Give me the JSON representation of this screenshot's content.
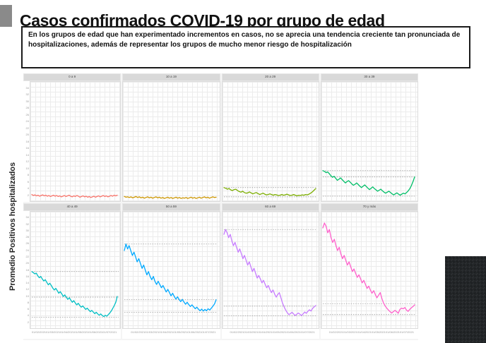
{
  "title": "Casos confirmados COVID-19 por grupo de edad",
  "note": "En los grupos de edad que han experimentado incrementos en casos, no se aprecia una tendencia creciente tan pronunciada de hospitalizaciones, además de representar los grupos de mucho menor riesgo de hospitalización",
  "ylabel": "Promedio Positivos hospitalizados",
  "colors": {
    "accent_bar": "#8a8a8a",
    "strip_background": "#d9d9d9",
    "reference_line": "#8a8a8a",
    "foam_block": "#232628"
  },
  "chart_data": {
    "type": "line",
    "layout": "facet_grid_2x4",
    "title": "",
    "xlabel": "",
    "ylabel": "Promedio Positivos hospitalizados",
    "ylim": [
      0,
      36
    ],
    "grid": true,
    "legend": "none",
    "yticks": [
      2,
      4,
      6,
      8,
      10,
      12,
      14,
      16,
      18,
      20,
      22,
      24,
      26,
      28,
      30,
      32,
      34
    ],
    "xticks": [
      "01/02/2021",
      "01/03/2021",
      "01/04/2021",
      "01/05/2021",
      "01/06/2021",
      "01/07/2021"
    ],
    "panels": [
      {
        "label": "0 a 9",
        "color": "#F8766D",
        "ref_lines": [],
        "values": [
          2.0,
          1.7,
          1.9,
          1.6,
          1.8,
          1.5,
          1.7,
          1.9,
          1.6,
          1.8,
          1.5,
          1.7,
          1.4,
          1.6,
          1.8,
          1.5,
          1.7,
          1.4,
          1.6,
          1.3,
          1.5,
          1.7,
          1.4,
          1.6,
          1.8,
          1.5,
          1.3,
          1.6,
          1.4,
          1.7,
          1.5,
          1.2,
          1.4,
          1.6,
          1.3,
          1.5,
          1.2,
          1.4,
          1.1,
          1.3,
          1.5,
          1.2,
          1.4,
          1.6,
          1.3,
          1.5,
          1.7,
          1.4,
          1.6,
          1.3,
          1.5,
          1.7,
          1.5,
          1.8,
          1.6,
          1.8
        ]
      },
      {
        "label": "10 a 19",
        "color": "#CD9600",
        "ref_lines": [],
        "values": [
          1.4,
          1.2,
          1.3,
          1.1,
          1.3,
          1.0,
          1.2,
          1.4,
          1.1,
          1.3,
          1.0,
          1.2,
          0.9,
          1.1,
          1.3,
          1.0,
          1.2,
          0.9,
          1.1,
          1.3,
          1.0,
          1.2,
          0.9,
          1.1,
          0.8,
          1.0,
          1.2,
          0.9,
          1.1,
          0.8,
          1.0,
          1.2,
          0.9,
          1.1,
          0.8,
          1.0,
          0.9,
          1.1,
          0.8,
          1.0,
          1.2,
          0.9,
          1.1,
          0.8,
          1.0,
          1.2,
          0.9,
          1.1,
          1.3,
          1.0,
          1.2,
          0.9,
          1.1,
          1.3,
          1.1,
          1.2
        ]
      },
      {
        "label": "20 a 29",
        "color": "#7CAE00",
        "ref_lines": [
          4.1,
          1.3
        ],
        "values": [
          4.1,
          3.9,
          3.6,
          3.8,
          3.4,
          3.2,
          3.5,
          3.6,
          3.2,
          2.9,
          2.7,
          3.0,
          2.6,
          2.4,
          2.5,
          2.8,
          2.5,
          2.2,
          2.4,
          2.6,
          2.3,
          2.0,
          2.2,
          2.4,
          2.1,
          1.9,
          2.0,
          2.2,
          2.0,
          1.8,
          2.0,
          1.9,
          1.7,
          1.8,
          2.0,
          1.8,
          1.9,
          2.1,
          1.9,
          1.7,
          1.8,
          2.0,
          1.8,
          1.6,
          1.8,
          1.7,
          1.9,
          1.8,
          2.0,
          1.9,
          2.1,
          2.4,
          2.8,
          3.3,
          3.8
        ]
      },
      {
        "label": "30 a 39",
        "color": "#00BE67",
        "ref_lines": [
          9.2,
          7.3,
          1.5
        ],
        "values": [
          9.2,
          9.0,
          8.6,
          8.8,
          8.3,
          7.7,
          7.2,
          7.5,
          6.9,
          6.3,
          6.6,
          7.0,
          6.5,
          6.0,
          5.5,
          5.9,
          6.2,
          5.7,
          5.2,
          4.8,
          5.1,
          5.5,
          5.0,
          4.5,
          4.1,
          4.5,
          4.9,
          4.4,
          3.9,
          3.5,
          3.9,
          4.3,
          3.8,
          3.4,
          3.0,
          3.3,
          3.6,
          3.1,
          2.7,
          2.4,
          2.7,
          3.0,
          2.6,
          2.2,
          1.9,
          2.2,
          2.5,
          2.1,
          1.8,
          2.1,
          2.4,
          2.2,
          2.6,
          3.1,
          3.8,
          4.7,
          5.9,
          7.3
        ]
      },
      {
        "label": "40 a 49",
        "color": "#00BFC4",
        "ref_lines": [
          17.5,
          9.6,
          3.4
        ],
        "values": [
          17.5,
          17.2,
          16.8,
          17.0,
          16.2,
          15.6,
          16.0,
          15.2,
          14.6,
          15.0,
          14.2,
          13.4,
          13.9,
          13.2,
          12.4,
          11.8,
          12.3,
          11.6,
          10.8,
          11.3,
          10.6,
          9.8,
          10.3,
          9.6,
          8.9,
          9.4,
          8.7,
          8.0,
          8.5,
          7.8,
          7.2,
          7.7,
          7.0,
          6.5,
          6.9,
          6.3,
          5.8,
          6.2,
          5.6,
          5.1,
          5.5,
          5.0,
          4.5,
          4.9,
          4.4,
          4.0,
          4.4,
          3.9,
          3.6,
          4.0,
          3.7,
          4.2,
          4.7,
          5.3,
          6.1,
          7.0,
          8.0,
          9.8
        ]
      },
      {
        "label": "50 a 59",
        "color": "#00A9FF",
        "ref_lines": [
          26.0,
          8.8,
          4.9
        ],
        "values": [
          24.0,
          26.0,
          24.5,
          25.5,
          24.0,
          22.5,
          23.5,
          22.0,
          20.5,
          21.5,
          20.0,
          18.5,
          19.5,
          18.0,
          16.5,
          17.5,
          16.0,
          15.0,
          16.0,
          14.5,
          13.5,
          14.5,
          13.5,
          12.5,
          13.2,
          12.2,
          11.2,
          12.0,
          11.0,
          10.0,
          10.8,
          9.8,
          9.0,
          9.7,
          8.9,
          8.2,
          8.9,
          8.1,
          7.4,
          8.0,
          7.3,
          6.7,
          7.2,
          6.6,
          6.0,
          6.5,
          5.9,
          5.4,
          5.9,
          5.3,
          5.8,
          5.4,
          6.0,
          5.6,
          6.2,
          6.8,
          7.5,
          8.8
        ]
      },
      {
        "label": "60 a 69",
        "color": "#C77CFF",
        "ref_lines": [
          30.5,
          6.8,
          3.8
        ],
        "values": [
          29.0,
          30.5,
          29.5,
          28.0,
          29.0,
          27.0,
          25.5,
          26.5,
          25.0,
          23.5,
          24.5,
          23.0,
          21.5,
          22.5,
          21.0,
          19.5,
          20.5,
          19.0,
          17.5,
          18.5,
          17.0,
          15.5,
          16.3,
          15.2,
          14.0,
          14.8,
          13.6,
          12.5,
          13.2,
          12.0,
          11.0,
          11.8,
          10.6,
          9.6,
          10.4,
          11.0,
          9.4,
          7.8,
          6.6,
          5.6,
          4.8,
          4.2,
          4.5,
          4.9,
          4.4,
          3.9,
          4.3,
          4.7,
          4.3,
          3.9,
          4.4,
          5.0,
          4.6,
          5.2,
          5.7,
          5.3,
          6.1,
          6.6,
          7.0
        ]
      },
      {
        "label": "70 y más",
        "color": "#FF61CC",
        "ref_lines": [
          7.6,
          4.2
        ],
        "values": [
          31.0,
          32.5,
          31.5,
          29.5,
          30.5,
          28.0,
          26.5,
          27.5,
          25.5,
          24.0,
          25.0,
          23.0,
          21.5,
          22.5,
          21.0,
          19.5,
          20.5,
          19.0,
          17.5,
          18.3,
          17.0,
          15.7,
          16.5,
          15.3,
          14.0,
          14.8,
          13.5,
          12.3,
          13.0,
          11.8,
          10.8,
          11.6,
          10.4,
          9.4,
          10.2,
          11.0,
          9.2,
          7.8,
          6.9,
          6.2,
          5.6,
          5.1,
          4.7,
          5.1,
          5.5,
          5.1,
          4.6,
          5.8,
          6.2,
          6.0,
          6.4,
          5.6,
          5.2,
          5.8,
          6.3,
          6.7,
          7.2
        ]
      }
    ]
  }
}
